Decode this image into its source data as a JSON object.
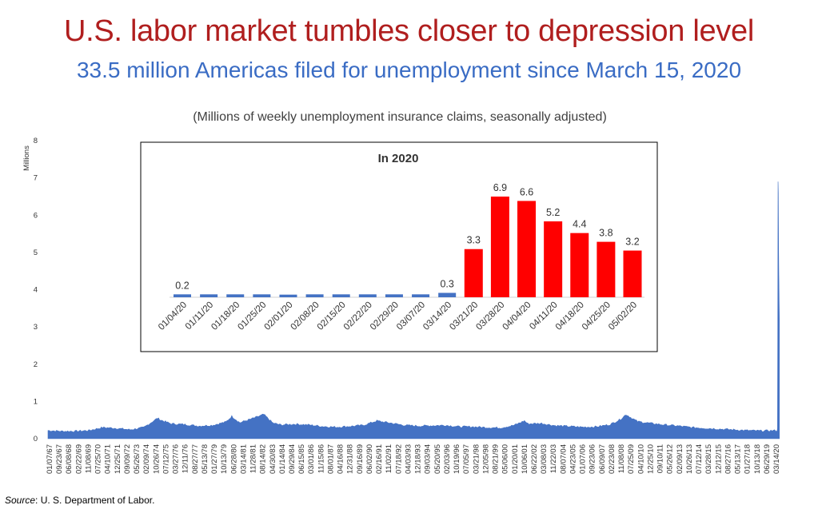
{
  "header": {
    "title": "U.S. labor market tumbles closer to depression level",
    "subtitle": "33.5 million Americas filed for unemployment since March 15, 2020",
    "note": "(Millions of weekly unemployment insurance claims, seasonally adjusted)"
  },
  "footer": {
    "source_label": "Source",
    "source_text": ": U. S. Department of Labor."
  },
  "colors": {
    "main_fill": "#4472c4",
    "inset_normal": "#4472c4",
    "inset_highlight": "#ff0000",
    "title": "#b01e1e",
    "subtitle": "#3a6cc4"
  },
  "chart_data": [
    {
      "type": "area",
      "title": "",
      "xlabel": "",
      "ylabel": "Millions",
      "ylim": [
        0,
        8
      ],
      "yticks": [
        0,
        1,
        2,
        3,
        4,
        5,
        6,
        7,
        8
      ],
      "grid": false,
      "x_tick_labels": [
        "01/07/67",
        "09/23/67",
        "06/08/68",
        "02/22/69",
        "11/08/69",
        "07/25/70",
        "04/10/71",
        "12/25/71",
        "09/09/72",
        "05/26/73",
        "02/09/74",
        "10/26/74",
        "07/12/75",
        "03/27/76",
        "12/11/76",
        "08/27/77",
        "05/13/78",
        "01/27/79",
        "10/13/79",
        "06/28/80",
        "03/14/81",
        "11/28/81",
        "08/14/82",
        "04/30/83",
        "01/14/84",
        "09/29/84",
        "06/15/85",
        "03/01/86",
        "11/15/86",
        "08/01/87",
        "04/16/88",
        "12/31/88",
        "09/16/89",
        "06/02/90",
        "02/16/91",
        "11/02/91",
        "07/18/92",
        "04/03/93",
        "12/18/93",
        "09/03/94",
        "05/20/95",
        "02/03/96",
        "10/19/96",
        "07/05/97",
        "03/21/98",
        "12/05/98",
        "08/21/99",
        "05/06/00",
        "01/20/01",
        "10/06/01",
        "06/22/02",
        "03/08/03",
        "11/22/03",
        "08/07/04",
        "04/23/05",
        "01/07/06",
        "09/23/06",
        "06/09/07",
        "02/23/08",
        "11/08/08",
        "07/25/09",
        "04/10/10",
        "12/25/10",
        "09/10/11",
        "05/26/12",
        "02/09/13",
        "10/26/13",
        "07/12/14",
        "03/28/15",
        "12/12/15",
        "08/27/16",
        "05/13/17",
        "01/27/18",
        "10/13/18",
        "06/29/19",
        "03/14/20"
      ],
      "series": [
        {
          "x": [
            "01/07/67",
            "01/1968",
            "01/1969",
            "01/1970",
            "01/1971",
            "01/1972",
            "01/1973",
            "01/1974",
            "01/1975",
            "04/1975",
            "01/1976",
            "01/1977",
            "01/1978",
            "01/1979",
            "01/1980",
            "06/1980",
            "01/1981",
            "01/1982",
            "10/1982",
            "06/1983",
            "01/1984",
            "01/1985",
            "01/1986",
            "01/1987",
            "01/1988",
            "01/1989",
            "01/1990",
            "01/1991",
            "04/1991",
            "01/1992",
            "01/1993",
            "01/1994",
            "01/1995",
            "01/1996",
            "01/1997",
            "01/1998",
            "01/1999",
            "01/2000",
            "01/2001",
            "10/2001",
            "01/2002",
            "01/2003",
            "01/2004",
            "01/2005",
            "01/2006",
            "01/2007",
            "01/2008",
            "10/2008",
            "03/2009",
            "07/2009",
            "01/2010",
            "01/2011",
            "01/2012",
            "01/2013",
            "01/2014",
            "01/2015",
            "01/2016",
            "01/2017",
            "01/2018",
            "01/2019",
            "02/29/20",
            "03/07/20",
            "03/14/20",
            "03/21/20",
            "03/28/20",
            "04/04/20",
            "04/11/20",
            "04/18/20",
            "04/25/20",
            "05/02/20"
          ],
          "values": [
            0.22,
            0.2,
            0.2,
            0.22,
            0.3,
            0.28,
            0.24,
            0.3,
            0.55,
            0.5,
            0.4,
            0.38,
            0.34,
            0.36,
            0.45,
            0.6,
            0.43,
            0.55,
            0.65,
            0.42,
            0.37,
            0.39,
            0.37,
            0.33,
            0.31,
            0.33,
            0.36,
            0.48,
            0.46,
            0.42,
            0.36,
            0.34,
            0.35,
            0.36,
            0.32,
            0.32,
            0.3,
            0.29,
            0.36,
            0.48,
            0.4,
            0.41,
            0.35,
            0.33,
            0.31,
            0.32,
            0.38,
            0.52,
            0.65,
            0.57,
            0.46,
            0.41,
            0.37,
            0.34,
            0.3,
            0.28,
            0.26,
            0.24,
            0.22,
            0.21,
            0.22,
            0.21,
            0.28,
            3.3,
            6.9,
            6.6,
            5.2,
            4.4,
            3.8,
            3.2
          ]
        }
      ]
    },
    {
      "type": "bar",
      "title": "In 2020",
      "categories": [
        "01/04/20",
        "01/11/20",
        "01/18/20",
        "01/25/20",
        "02/01/20",
        "02/08/20",
        "02/15/20",
        "02/22/20",
        "02/29/20",
        "03/07/20",
        "03/14/20",
        "03/21/20",
        "03/28/20",
        "04/04/20",
        "04/11/20",
        "04/18/20",
        "04/25/20",
        "05/02/20"
      ],
      "values": [
        0.2,
        0.2,
        0.2,
        0.2,
        0.18,
        0.2,
        0.2,
        0.2,
        0.2,
        0.2,
        0.3,
        3.3,
        6.9,
        6.6,
        5.2,
        4.4,
        3.8,
        3.2
      ],
      "data_labels": [
        "0.2",
        "",
        "",
        "",
        "",
        "",
        "",
        "",
        "",
        "",
        "0.3",
        "3.3",
        "6.9",
        "6.6",
        "5.2",
        "4.4",
        "3.8",
        "3.2"
      ],
      "highlight_from_index": 11
    }
  ]
}
